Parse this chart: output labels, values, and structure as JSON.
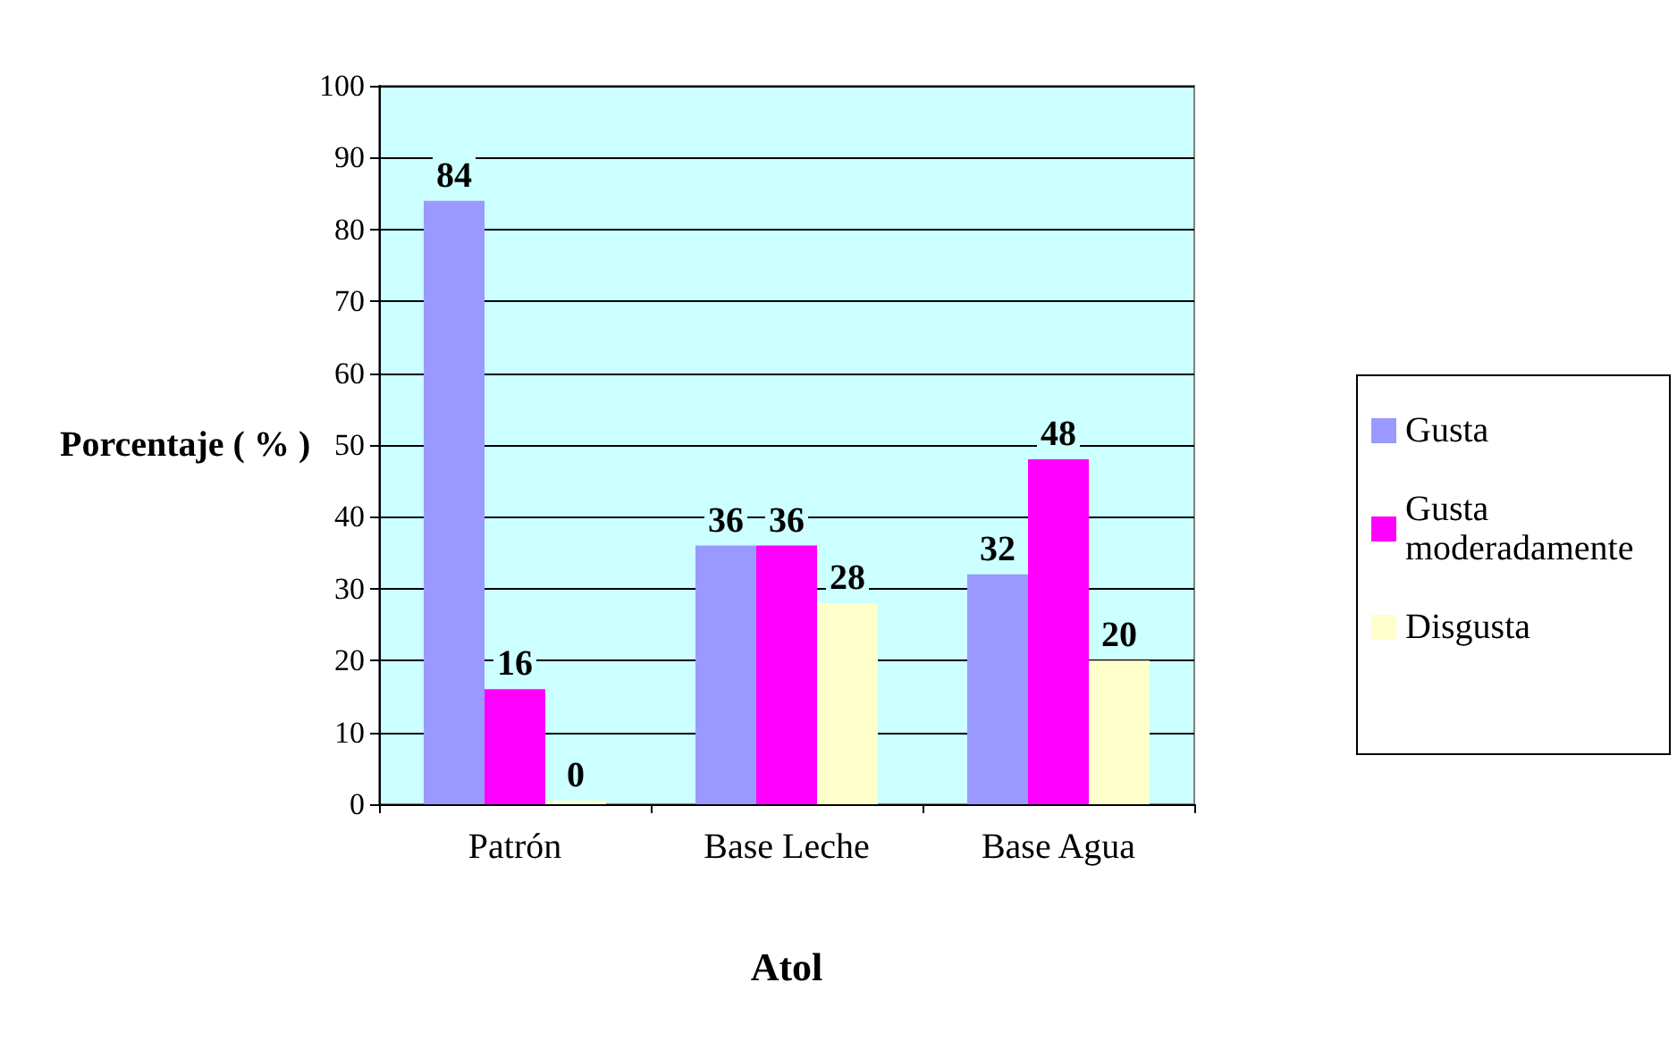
{
  "chart_data": {
    "type": "bar",
    "xlabel": "Atol",
    "ylabel": "Porcentaje ( % )",
    "categories": [
      "Patrón",
      "Base Leche",
      "Base Agua"
    ],
    "series": [
      {
        "name": "Gusta",
        "color": "#9999ff",
        "values": [
          84,
          36,
          32
        ]
      },
      {
        "name": "Gusta moderadamente",
        "color": "#ff00ff",
        "values": [
          16,
          36,
          48
        ]
      },
      {
        "name": "Disgusta",
        "color": "#ffffcc",
        "values": [
          0,
          28,
          20
        ]
      }
    ],
    "ylim": [
      0,
      100
    ],
    "yticks": [
      0,
      10,
      20,
      30,
      40,
      50,
      60,
      70,
      80,
      90,
      100
    ],
    "grid": "y",
    "legend": "right",
    "data_labels": true
  }
}
